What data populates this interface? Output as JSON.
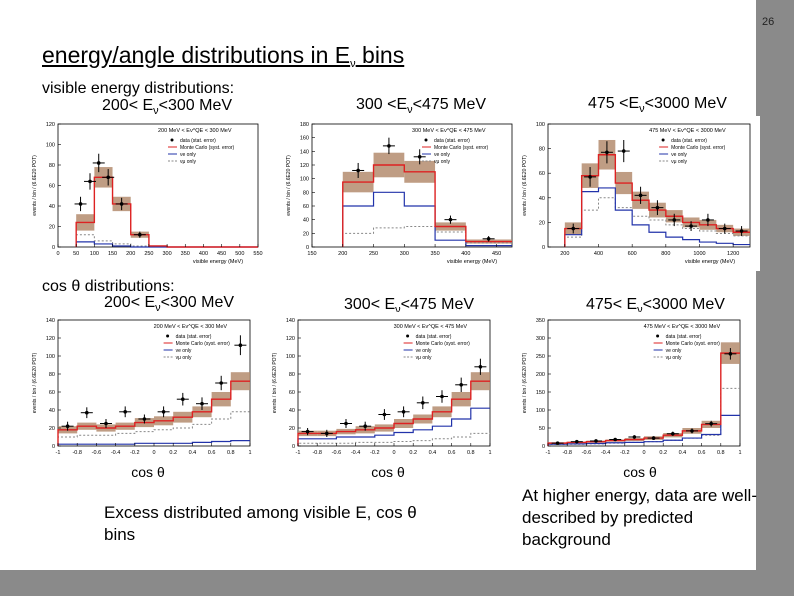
{
  "slide": {
    "page_number": "26",
    "title_pre": "energy/angle distributions in E",
    "title_sub": "ν",
    "title_post": " bins",
    "visible_energy_label": "visible energy distributions:",
    "cos_label": "cos θ distributions:",
    "bin_headers_top": [
      {
        "pre": "200< E",
        "sub": "ν",
        "post": "<300 MeV"
      },
      {
        "pre": "300 <E",
        "sub": "ν",
        "post": "<475 MeV"
      },
      {
        "pre": "475 <E",
        "sub": "ν",
        "post": "<3000 MeV"
      }
    ],
    "bin_headers_bottom": [
      {
        "pre": "200< E",
        "sub": "ν",
        "post": "<300 MeV"
      },
      {
        "pre": "300< E",
        "sub": "ν",
        "post": "<475 MeV"
      },
      {
        "pre": "475< E",
        "sub": "ν",
        "post": "<3000 MeV"
      }
    ],
    "cos_axis_label": "cos θ",
    "left_note": "Excess distributed among visible E, cos θ bins",
    "right_note": "At higher energy, data are well-described by predicted background"
  },
  "colors": {
    "mc": "#dd2222",
    "band": "#b48c6e",
    "nue": "#2233aa",
    "numu": "#888888",
    "data": "#000000"
  },
  "chart_data": [
    {
      "id": "e1",
      "type": "histogram",
      "title": "200 MeV < Eν^QE < 300 MeV",
      "xlabel": "visible energy (MeV)",
      "ylabel": "events / bin / (6.6E20 POT)",
      "xlim": [
        0,
        550
      ],
      "ylim": [
        0,
        120
      ],
      "xticks": [
        "0",
        "50",
        "100",
        "150",
        "200",
        "250",
        "300",
        "350",
        "400",
        "450",
        "500",
        "550"
      ],
      "yticks": [
        "0",
        "20",
        "40",
        "60",
        "80",
        "100",
        "120"
      ],
      "edges": [
        50,
        100,
        150,
        200,
        250,
        300,
        350,
        400,
        450,
        500,
        550
      ],
      "mc": [
        24,
        68,
        42,
        12,
        1,
        0,
        0,
        0,
        0,
        0
      ],
      "band": [
        8,
        10,
        7,
        3,
        0.5,
        0,
        0,
        0,
        0,
        0
      ],
      "nue": [
        5,
        3,
        1,
        0,
        0,
        0,
        0,
        0,
        0,
        0
      ],
      "numu": [
        12,
        6,
        3,
        1,
        0,
        0,
        0,
        0,
        0,
        0
      ],
      "data": [
        {
          "x": 62,
          "y": 42,
          "ey": 7
        },
        {
          "x": 88,
          "y": 64,
          "ey": 8
        },
        {
          "x": 112,
          "y": 82,
          "ey": 9
        },
        {
          "x": 138,
          "y": 68,
          "ey": 8
        },
        {
          "x": 175,
          "y": 42,
          "ey": 6
        },
        {
          "x": 225,
          "y": 12,
          "ey": 3
        }
      ],
      "legend": [
        "data (stat. error)",
        "Monte Carlo (syst. error)",
        "νe only",
        "νμ only"
      ]
    },
    {
      "id": "e2",
      "type": "histogram",
      "title": "300 MeV < Eν^QE < 475 MeV",
      "xlabel": "visible energy (MeV)",
      "ylabel": "events / bin / (6.6E20 POT)",
      "xlim": [
        150,
        475
      ],
      "ylim": [
        0,
        180
      ],
      "xticks": [
        "150",
        "200",
        "250",
        "300",
        "350",
        "400",
        "450"
      ],
      "yticks": [
        "0",
        "20",
        "40",
        "60",
        "80",
        "100",
        "120",
        "140",
        "160",
        "180"
      ],
      "edges": [
        200,
        250,
        300,
        350,
        400,
        475
      ],
      "mc": [
        95,
        120,
        110,
        30,
        8
      ],
      "band": [
        15,
        18,
        16,
        6,
        3
      ],
      "nue": [
        60,
        80,
        60,
        10,
        2
      ],
      "numu": [
        20,
        28,
        30,
        22,
        6
      ],
      "data": [
        {
          "x": 225,
          "y": 112,
          "ey": 11
        },
        {
          "x": 275,
          "y": 148,
          "ey": 12
        },
        {
          "x": 325,
          "y": 132,
          "ey": 11
        },
        {
          "x": 375,
          "y": 40,
          "ey": 6
        },
        {
          "x": 437,
          "y": 12,
          "ey": 4
        }
      ],
      "legend": [
        "data (stat. error)",
        "Monte Carlo (syst. error)",
        "νe only",
        "νμ only"
      ]
    },
    {
      "id": "e3",
      "type": "histogram",
      "title": "475 MeV < Eν^QE < 3000 MeV",
      "xlabel": "visible energy (MeV)",
      "ylabel": "events / bin / (6.6E20 POT)",
      "xlim": [
        100,
        1300
      ],
      "ylim": [
        0,
        100
      ],
      "xticks": [
        "200",
        "400",
        "600",
        "800",
        "1000",
        "1200"
      ],
      "yticks": [
        "0",
        "20",
        "40",
        "60",
        "80",
        "100"
      ],
      "edges": [
        200,
        300,
        400,
        500,
        600,
        700,
        800,
        900,
        1000,
        1100,
        1200,
        1300
      ],
      "mc": [
        15,
        58,
        75,
        52,
        38,
        30,
        25,
        20,
        18,
        15,
        12
      ],
      "band": [
        5,
        10,
        12,
        9,
        7,
        6,
        5,
        4,
        4,
        3,
        3
      ],
      "nue": [
        10,
        45,
        48,
        30,
        18,
        12,
        8,
        6,
        4,
        3,
        2
      ],
      "numu": [
        8,
        30,
        40,
        32,
        25,
        22,
        18,
        15,
        13,
        11,
        9
      ],
      "data": [
        {
          "x": 250,
          "y": 15,
          "ey": 4
        },
        {
          "x": 350,
          "y": 57,
          "ey": 8
        },
        {
          "x": 450,
          "y": 77,
          "ey": 9
        },
        {
          "x": 550,
          "y": 78,
          "ey": 9
        },
        {
          "x": 650,
          "y": 42,
          "ey": 7
        },
        {
          "x": 750,
          "y": 32,
          "ey": 6
        },
        {
          "x": 850,
          "y": 22,
          "ey": 5
        },
        {
          "x": 950,
          "y": 17,
          "ey": 4
        },
        {
          "x": 1050,
          "y": 22,
          "ey": 5
        },
        {
          "x": 1150,
          "y": 15,
          "ey": 4
        },
        {
          "x": 1250,
          "y": 13,
          "ey": 4
        }
      ],
      "legend": [
        "data (stat. error)",
        "Monte Carlo (syst. error)",
        "νe only",
        "νμ only"
      ]
    },
    {
      "id": "c1",
      "type": "histogram",
      "title": "200 MeV < Eν^QE < 300 MeV",
      "xlabel": "",
      "ylabel": "events / bin / (6.6E20 POT)",
      "xlim": [
        -1,
        1
      ],
      "ylim": [
        0,
        140
      ],
      "xticks": [
        "-1",
        "-0.8",
        "-0.6",
        "-0.4",
        "-0.2",
        "0",
        "0.2",
        "0.4",
        "0.6",
        "0.8",
        "1"
      ],
      "yticks": [
        "0",
        "20",
        "40",
        "60",
        "80",
        "100",
        "120",
        "140"
      ],
      "edges": [
        -1,
        -0.8,
        -0.6,
        -0.4,
        -0.2,
        0,
        0.2,
        0.4,
        0.6,
        0.8,
        1
      ],
      "mc": [
        18,
        22,
        20,
        22,
        26,
        28,
        32,
        38,
        52,
        72
      ],
      "band": [
        4,
        4,
        4,
        4,
        5,
        5,
        6,
        6,
        8,
        10
      ],
      "nue": [
        2,
        2,
        2,
        2,
        3,
        3,
        3,
        4,
        5,
        6
      ],
      "numu": [
        10,
        12,
        12,
        14,
        16,
        18,
        20,
        24,
        30,
        38
      ],
      "data": [
        {
          "x": -0.9,
          "y": 22,
          "ey": 5
        },
        {
          "x": -0.7,
          "y": 37,
          "ey": 6
        },
        {
          "x": -0.5,
          "y": 25,
          "ey": 5
        },
        {
          "x": -0.3,
          "y": 38,
          "ey": 6
        },
        {
          "x": -0.1,
          "y": 30,
          "ey": 5
        },
        {
          "x": 0.1,
          "y": 38,
          "ey": 6
        },
        {
          "x": 0.3,
          "y": 52,
          "ey": 7
        },
        {
          "x": 0.5,
          "y": 47,
          "ey": 7
        },
        {
          "x": 0.7,
          "y": 70,
          "ey": 8
        },
        {
          "x": 0.9,
          "y": 112,
          "ey": 11
        }
      ],
      "legend": [
        "data (stat. error)",
        "Monte Carlo (syst. error)",
        "νe only",
        "νμ only"
      ]
    },
    {
      "id": "c2",
      "type": "histogram",
      "title": "300 MeV < Eν^QE < 475 MeV",
      "xlabel": "",
      "ylabel": "events / bin / (6.6E20 POT)",
      "xlim": [
        -1,
        1
      ],
      "ylim": [
        0,
        140
      ],
      "xticks": [
        "-1",
        "-0.8",
        "-0.6",
        "-0.4",
        "-0.2",
        "0",
        "0.2",
        "0.4",
        "0.6",
        "0.8",
        "1"
      ],
      "yticks": [
        "0",
        "20",
        "40",
        "60",
        "80",
        "100",
        "120",
        "140"
      ],
      "edges": [
        -1,
        -0.8,
        -0.6,
        -0.4,
        -0.2,
        0,
        0.2,
        0.4,
        0.6,
        0.8,
        1
      ],
      "mc": [
        14,
        14,
        16,
        18,
        20,
        25,
        30,
        38,
        52,
        72
      ],
      "band": [
        3,
        3,
        3,
        4,
        4,
        5,
        5,
        6,
        8,
        10
      ],
      "nue": [
        8,
        8,
        10,
        10,
        12,
        15,
        18,
        22,
        30,
        42
      ],
      "numu": [
        3,
        3,
        3,
        4,
        4,
        5,
        6,
        8,
        10,
        14
      ],
      "data": [
        {
          "x": -0.9,
          "y": 16,
          "ey": 4
        },
        {
          "x": -0.7,
          "y": 14,
          "ey": 4
        },
        {
          "x": -0.5,
          "y": 25,
          "ey": 5
        },
        {
          "x": -0.3,
          "y": 22,
          "ey": 5
        },
        {
          "x": -0.1,
          "y": 35,
          "ey": 6
        },
        {
          "x": 0.1,
          "y": 38,
          "ey": 6
        },
        {
          "x": 0.3,
          "y": 48,
          "ey": 7
        },
        {
          "x": 0.5,
          "y": 55,
          "ey": 7
        },
        {
          "x": 0.7,
          "y": 68,
          "ey": 8
        },
        {
          "x": 0.9,
          "y": 88,
          "ey": 9
        }
      ],
      "legend": [
        "data (stat. error)",
        "Monte Carlo (syst. error)",
        "νe only",
        "νμ only"
      ]
    },
    {
      "id": "c3",
      "type": "histogram",
      "title": "475 MeV < Eν^QE < 3000 MeV",
      "xlabel": "",
      "ylabel": "events / bin / (6.6E20 POT)",
      "xlim": [
        -1,
        1
      ],
      "ylim": [
        0,
        350
      ],
      "xticks": [
        "-1",
        "-0.8",
        "-0.6",
        "-0.4",
        "-0.2",
        "0",
        "0.2",
        "0.4",
        "0.6",
        "0.8",
        "1"
      ],
      "yticks": [
        "0",
        "50",
        "100",
        "150",
        "200",
        "250",
        "300",
        "350"
      ],
      "edges": [
        -1,
        -0.8,
        -0.6,
        -0.4,
        -0.2,
        0,
        0.2,
        0.4,
        0.6,
        0.8,
        1
      ],
      "mc": [
        8,
        10,
        12,
        15,
        18,
        22,
        30,
        42,
        60,
        258
      ],
      "band": [
        2,
        2,
        3,
        3,
        4,
        5,
        6,
        8,
        10,
        30
      ],
      "nue": [
        5,
        6,
        7,
        9,
        10,
        12,
        16,
        22,
        32,
        85
      ],
      "numu": [
        4,
        5,
        6,
        8,
        10,
        12,
        16,
        22,
        30,
        160
      ],
      "data": [
        {
          "x": -0.9,
          "y": 8,
          "ey": 3
        },
        {
          "x": -0.7,
          "y": 12,
          "ey": 4
        },
        {
          "x": -0.5,
          "y": 14,
          "ey": 4
        },
        {
          "x": -0.3,
          "y": 18,
          "ey": 4
        },
        {
          "x": -0.1,
          "y": 25,
          "ey": 5
        },
        {
          "x": 0.1,
          "y": 22,
          "ey": 5
        },
        {
          "x": 0.3,
          "y": 34,
          "ey": 6
        },
        {
          "x": 0.5,
          "y": 42,
          "ey": 7
        },
        {
          "x": 0.7,
          "y": 62,
          "ey": 8
        },
        {
          "x": 0.9,
          "y": 256,
          "ey": 16
        }
      ],
      "legend": [
        "data (stat. error)",
        "Monte Carlo (syst. error)",
        "νe only",
        "νμ only"
      ]
    }
  ]
}
